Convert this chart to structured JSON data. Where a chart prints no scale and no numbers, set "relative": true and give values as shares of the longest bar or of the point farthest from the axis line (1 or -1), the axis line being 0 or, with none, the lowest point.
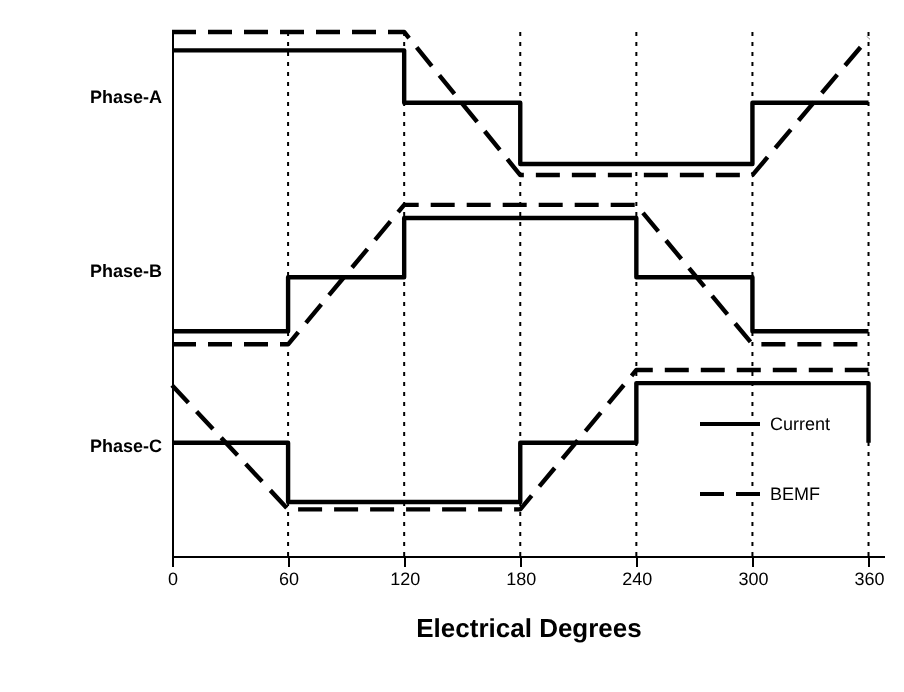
{
  "chart_data": {
    "type": "line",
    "relative": true,
    "xlabel": "Electrical Degrees",
    "xlim": [
      0,
      368
    ],
    "xticks": [
      0,
      60,
      120,
      180,
      240,
      300,
      360
    ],
    "legend": "bottom right",
    "annotations": [
      "Phase-A",
      "Phase-B",
      "Phase-C"
    ],
    "ref_lines": [
      {
        "axis": "x",
        "value": 60,
        "line_style": "dotted",
        "color": "#000000"
      },
      {
        "axis": "x",
        "value": 120,
        "line_style": "dotted",
        "color": "#000000"
      },
      {
        "axis": "x",
        "value": 180,
        "line_style": "dotted",
        "color": "#000000"
      },
      {
        "axis": "x",
        "value": 240,
        "line_style": "dotted",
        "color": "#000000"
      },
      {
        "axis": "x",
        "value": 300,
        "line_style": "dotted",
        "color": "#000000"
      },
      {
        "axis": "x",
        "value": 360,
        "line_style": "dotted",
        "color": "#000000"
      }
    ],
    "series": [
      {
        "name": "Current",
        "color": "#000000",
        "line_style": "solid",
        "x": [
          0,
          120,
          120,
          180,
          180,
          300,
          300,
          360
        ],
        "values": [
          0.965,
          0.965,
          0.865,
          0.865,
          0.748,
          0.748,
          0.865,
          0.865
        ]
      },
      {
        "name": "BEMF",
        "color": "#000000",
        "line_style": "dashed",
        "x": [
          0,
          120,
          180,
          300,
          360
        ],
        "values": [
          1.0,
          1.0,
          0.727,
          0.727,
          0.989
        ]
      },
      {
        "color": "#000000",
        "line_style": "solid",
        "x": [
          0,
          60,
          60,
          120,
          120,
          240,
          240,
          300,
          300,
          360
        ],
        "values": [
          0.429,
          0.429,
          0.532,
          0.532,
          0.645,
          0.645,
          0.532,
          0.532,
          0.429,
          0.429
        ]
      },
      {
        "color": "#000000",
        "line_style": "dashed",
        "x": [
          0,
          60,
          120,
          240,
          300,
          360
        ],
        "values": [
          0.404,
          0.404,
          0.67,
          0.67,
          0.404,
          0.404
        ]
      },
      {
        "color": "#000000",
        "line_style": "solid",
        "x": [
          0,
          60,
          60,
          180,
          180,
          240,
          240,
          360,
          360
        ],
        "values": [
          0.216,
          0.216,
          0.103,
          0.103,
          0.216,
          0.216,
          0.33,
          0.33,
          0.216
        ]
      },
      {
        "color": "#000000",
        "line_style": "dashed",
        "x": [
          0,
          60,
          180,
          240,
          360
        ],
        "values": [
          0.326,
          0.089,
          0.089,
          0.355,
          0.355
        ]
      }
    ]
  }
}
